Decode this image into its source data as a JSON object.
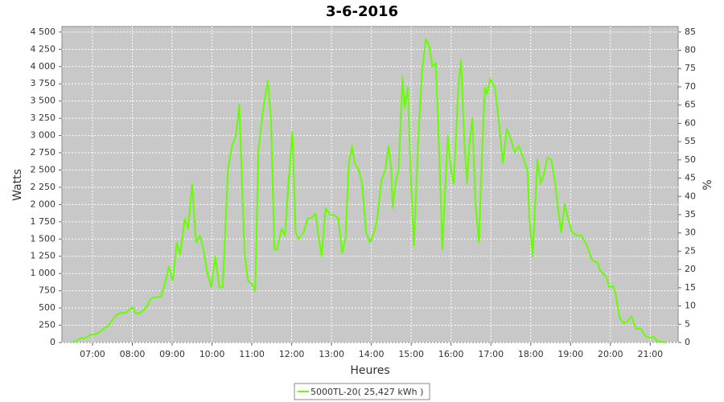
{
  "chart_data": {
    "type": "line",
    "title": "3-6-2016",
    "x_label": "Heures",
    "y_label": "Watts",
    "y2_label": "%",
    "x": [
      "06:30",
      "06:36",
      "06:42",
      "06:50",
      "06:56",
      "07:04",
      "07:11",
      "07:18",
      "07:24",
      "07:30",
      "07:36",
      "07:42",
      "07:50",
      "07:56",
      "08:01",
      "08:04",
      "08:10",
      "08:16",
      "08:22",
      "08:28",
      "08:36",
      "08:43",
      "08:49",
      "08:55",
      "09:01",
      "09:07",
      "09:12",
      "09:19",
      "09:24",
      "09:30",
      "09:36",
      "09:42",
      "09:48",
      "09:53",
      "09:59",
      "10:05",
      "10:11",
      "10:16",
      "10:24",
      "10:30",
      "10:36",
      "10:41",
      "10:44",
      "10:49",
      "10:54",
      "11:00",
      "11:05",
      "11:10",
      "11:16",
      "11:19",
      "11:24",
      "11:29",
      "11:34",
      "11:38",
      "11:45",
      "11:50",
      "11:55",
      "12:01",
      "12:06",
      "12:10",
      "12:18",
      "12:24",
      "12:30",
      "12:36",
      "12:41",
      "12:45",
      "12:51",
      "12:58",
      "13:04",
      "13:10",
      "13:16",
      "13:21",
      "13:26",
      "13:31",
      "13:35",
      "13:41",
      "13:46",
      "13:52",
      "13:58",
      "14:04",
      "14:09",
      "14:15",
      "14:21",
      "14:26",
      "14:30",
      "14:32",
      "14:37",
      "14:41",
      "14:47",
      "14:50",
      "14:55",
      "14:59",
      "15:04",
      "15:10",
      "15:16",
      "15:22",
      "15:27",
      "15:32",
      "15:37",
      "15:42",
      "15:47",
      "15:51",
      "15:55",
      "16:00",
      "16:04",
      "16:11",
      "16:15",
      "16:20",
      "16:24",
      "16:27",
      "16:32",
      "16:37",
      "16:42",
      "16:46",
      "16:51",
      "16:54",
      "16:59",
      "17:06",
      "17:13",
      "17:18",
      "17:24",
      "17:30",
      "17:36",
      "17:42",
      "17:48",
      "17:55",
      "17:58",
      "18:03",
      "18:10",
      "18:15",
      "18:20",
      "18:25",
      "18:31",
      "18:37",
      "18:41",
      "18:46",
      "18:51",
      "18:56",
      "19:02",
      "19:10",
      "19:16",
      "19:25",
      "19:32",
      "19:41",
      "19:44",
      "19:54",
      "19:58",
      "20:04",
      "20:08",
      "20:14",
      "20:20",
      "20:26",
      "20:32",
      "20:38",
      "20:46",
      "20:52",
      "20:59",
      "21:05",
      "21:11",
      "21:17",
      "21:24"
    ],
    "series": [
      {
        "name": "5000TL-20( 25,427 kWh )",
        "color": "#66ff00",
        "values": [
          0,
          30,
          60,
          70,
          110,
          120,
          150,
          210,
          240,
          330,
          400,
          430,
          430,
          480,
          510,
          430,
          420,
          460,
          520,
          640,
          660,
          660,
          850,
          1100,
          900,
          1450,
          1280,
          1800,
          1650,
          2300,
          1450,
          1550,
          1300,
          1000,
          800,
          1250,
          800,
          800,
          2500,
          2850,
          3000,
          3450,
          2600,
          1300,
          900,
          850,
          750,
          2800,
          3300,
          3500,
          3800,
          3200,
          1350,
          1350,
          1650,
          1550,
          2300,
          3050,
          1600,
          1500,
          1600,
          1800,
          1800,
          1870,
          1500,
          1250,
          1950,
          1850,
          1850,
          1800,
          1300,
          1500,
          2600,
          2850,
          2600,
          2500,
          2300,
          1600,
          1450,
          1600,
          1800,
          2350,
          2500,
          2850,
          2500,
          1950,
          2350,
          2500,
          3850,
          3400,
          3700,
          2500,
          1400,
          2800,
          3900,
          4400,
          4300,
          4000,
          4050,
          2800,
          1350,
          2200,
          3000,
          2500,
          2300,
          3700,
          4100,
          2900,
          2300,
          2800,
          3250,
          2000,
          1450,
          2600,
          3700,
          3600,
          3820,
          3700,
          3100,
          2600,
          3100,
          2950,
          2750,
          2850,
          2700,
          2500,
          1800,
          1250,
          2650,
          2300,
          2450,
          2680,
          2650,
          2300,
          1950,
          1600,
          2000,
          1800,
          1600,
          1550,
          1550,
          1400,
          1200,
          1150,
          1050,
          950,
          800,
          820,
          700,
          350,
          280,
          310,
          380,
          200,
          200,
          100,
          70,
          80,
          20,
          10,
          0
        ]
      }
    ],
    "xlim": [
      "06:14",
      "21:42"
    ],
    "xticks": [
      "07:00",
      "08:00",
      "09:00",
      "10:00",
      "11:00",
      "12:00",
      "13:00",
      "14:00",
      "15:00",
      "16:00",
      "17:00",
      "18:00",
      "19:00",
      "20:00",
      "21:00"
    ],
    "ylim": [
      0,
      4580
    ],
    "yticks": [
      0,
      250,
      500,
      750,
      {
        "value": 1000,
        "label": "1 000"
      },
      {
        "value": 1250,
        "label": "1 250"
      },
      {
        "value": 1500,
        "label": "1 500"
      },
      {
        "value": 1750,
        "label": "1 750"
      },
      {
        "value": 2000,
        "label": "2 000"
      },
      {
        "value": 2250,
        "label": "2 250"
      },
      {
        "value": 2500,
        "label": "2 500"
      },
      {
        "value": 2750,
        "label": "2 750"
      },
      {
        "value": 3000,
        "label": "3 000"
      },
      {
        "value": 3250,
        "label": "3 250"
      },
      {
        "value": 3500,
        "label": "3 500"
      },
      {
        "value": 3750,
        "label": "3 750"
      },
      {
        "value": 4000,
        "label": "4 000"
      },
      {
        "value": 4250,
        "label": "4 250"
      },
      {
        "value": 4500,
        "label": "4 500"
      }
    ],
    "y2lim": [
      0,
      86.5
    ],
    "y2ticks": [
      0,
      5,
      10,
      15,
      20,
      25,
      30,
      35,
      40,
      45,
      50,
      55,
      60,
      65,
      70,
      75,
      80,
      85
    ],
    "grid": true,
    "background": "#c8c8c8",
    "legend": "bottom"
  }
}
